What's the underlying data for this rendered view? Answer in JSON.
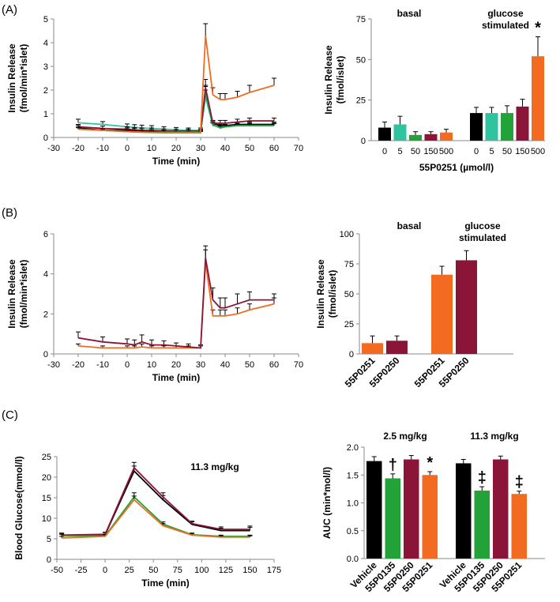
{
  "panels": [
    {
      "label": "(A)"
    },
    {
      "label": "(B)"
    },
    {
      "label": "(C)"
    }
  ],
  "chart_data": [
    {
      "id": "A_left",
      "type": "line",
      "xlabel": "Time (min)",
      "ylabel": "Insulin Release\n(fmol/min*islet)",
      "xlim": [
        -30,
        70
      ],
      "ylim": [
        0,
        5
      ],
      "xticks": [
        -30,
        -20,
        -10,
        0,
        10,
        20,
        30,
        40,
        50,
        60,
        70
      ],
      "yticks": [
        0,
        1,
        2,
        3,
        4,
        5
      ],
      "x": [
        -20,
        -10,
        0,
        3,
        6,
        10,
        15,
        20,
        25,
        30,
        32,
        35,
        38,
        40,
        45,
        50,
        60
      ],
      "series": [
        {
          "name": "0",
          "color": "#000000",
          "values": [
            0.4,
            0.3,
            0.3,
            0.28,
            0.27,
            0.26,
            0.25,
            0.25,
            0.24,
            0.25,
            1.8,
            0.6,
            0.5,
            0.5,
            0.55,
            0.55,
            0.55
          ],
          "err": [
            0.1,
            0.08,
            0.1,
            0.1,
            0.1,
            0.08,
            0.07,
            0.07,
            0.07,
            0.07,
            0.35,
            0.1,
            0.1,
            0.1,
            0.1,
            0.1,
            0.1
          ]
        },
        {
          "name": "5",
          "color": "#2ec4a0",
          "values": [
            0.62,
            0.55,
            0.45,
            0.42,
            0.4,
            0.38,
            0.35,
            0.32,
            0.3,
            0.3,
            1.7,
            0.5,
            0.45,
            0.45,
            0.5,
            0.5,
            0.5
          ],
          "err": [
            0.15,
            0.12,
            0.12,
            0.12,
            0.12,
            0.12,
            0.1,
            0.1,
            0.1,
            0.1,
            0.3,
            0.1,
            0.1,
            0.1,
            0.1,
            0.1,
            0.1
          ]
        },
        {
          "name": "50",
          "color": "#23a23a",
          "values": [
            0.35,
            0.3,
            0.25,
            0.23,
            0.22,
            0.21,
            0.2,
            0.2,
            0.2,
            0.2,
            1.9,
            0.55,
            0.4,
            0.45,
            0.5,
            0.5,
            0.5
          ],
          "err": [
            0.06,
            0.05,
            0.05,
            0.05,
            0.05,
            0.05,
            0.05,
            0.05,
            0.05,
            0.05,
            0.3,
            0.1,
            0.08,
            0.08,
            0.08,
            0.08,
            0.08
          ]
        },
        {
          "name": "150",
          "color": "#8b1538",
          "values": [
            0.45,
            0.38,
            0.35,
            0.32,
            0.3,
            0.3,
            0.28,
            0.27,
            0.27,
            0.27,
            2.1,
            0.6,
            0.6,
            0.6,
            0.65,
            0.7,
            0.7
          ],
          "err": [
            0.1,
            0.1,
            0.1,
            0.1,
            0.1,
            0.1,
            0.08,
            0.08,
            0.08,
            0.08,
            0.35,
            0.12,
            0.12,
            0.12,
            0.12,
            0.12,
            0.12
          ]
        },
        {
          "name": "500",
          "color": "#f26b21",
          "values": [
            0.35,
            0.3,
            0.25,
            0.24,
            0.23,
            0.22,
            0.22,
            0.22,
            0.22,
            0.22,
            4.3,
            1.8,
            1.6,
            1.6,
            1.7,
            1.9,
            2.2
          ],
          "err": [
            0.08,
            0.06,
            0.06,
            0.06,
            0.06,
            0.06,
            0.06,
            0.06,
            0.06,
            0.06,
            0.5,
            0.3,
            0.25,
            0.25,
            0.25,
            0.3,
            0.3
          ]
        }
      ]
    },
    {
      "id": "A_right",
      "type": "bar",
      "ylabel": "Insulin Release\n(fmol/islet)",
      "xlabel": "55P0251 (µmol/l)",
      "ylim": [
        0,
        75
      ],
      "yticks": [
        0,
        25,
        50,
        75
      ],
      "groups": [
        {
          "label": "basal",
          "categories": [
            "0",
            "5",
            "50",
            "150",
            "500"
          ],
          "values": [
            8,
            10,
            3.5,
            4,
            5
          ],
          "err": [
            3.5,
            5,
            2,
            1.5,
            2
          ],
          "colors": [
            "#000000",
            "#2ec4a0",
            "#23a23a",
            "#8b1538",
            "#f26b21"
          ]
        },
        {
          "label": "glucose\nstimulated",
          "categories": [
            "0",
            "5",
            "50",
            "150",
            "500"
          ],
          "values": [
            17,
            17,
            17,
            21,
            52
          ],
          "err": [
            3.5,
            3.5,
            4.5,
            4.5,
            12
          ],
          "colors": [
            "#000000",
            "#2ec4a0",
            "#23a23a",
            "#8b1538",
            "#f26b21"
          ]
        }
      ],
      "annotations": [
        {
          "group": 1,
          "index": 4,
          "text": "*"
        }
      ]
    },
    {
      "id": "B_left",
      "type": "line",
      "xlabel": "Time (min)",
      "ylabel": "Insulin Release\n(fmol/min*islet)",
      "xlim": [
        -30,
        70
      ],
      "ylim": [
        0,
        6
      ],
      "xticks": [
        -30,
        -20,
        -10,
        0,
        10,
        20,
        30,
        40,
        50,
        60,
        70
      ],
      "yticks": [
        0,
        2,
        4,
        6
      ],
      "x": [
        -20,
        -10,
        0,
        3,
        6,
        10,
        15,
        20,
        25,
        30,
        32,
        35,
        38,
        40,
        45,
        50,
        60
      ],
      "series": [
        {
          "name": "55P0251",
          "color": "#f26b21",
          "values": [
            0.4,
            0.3,
            0.3,
            0.3,
            0.35,
            0.3,
            0.3,
            0.3,
            0.3,
            0.3,
            4.6,
            1.9,
            1.9,
            1.9,
            2.0,
            2.2,
            2.5
          ],
          "err": [
            0.1,
            0.1,
            0.1,
            0.1,
            0.15,
            0.1,
            0.1,
            0.1,
            0.1,
            0.1,
            0.6,
            0.3,
            0.3,
            0.3,
            0.3,
            0.3,
            0.3
          ]
        },
        {
          "name": "55P0250",
          "color": "#8b1538",
          "values": [
            0.8,
            0.6,
            0.5,
            0.45,
            0.6,
            0.45,
            0.45,
            0.4,
            0.35,
            0.3,
            4.8,
            2.7,
            2.3,
            2.3,
            2.5,
            2.7,
            2.7
          ],
          "err": [
            0.3,
            0.25,
            0.25,
            0.25,
            0.35,
            0.25,
            0.2,
            0.15,
            0.15,
            0.15,
            0.6,
            0.6,
            0.5,
            0.5,
            0.5,
            0.4,
            0.3
          ]
        }
      ]
    },
    {
      "id": "B_right",
      "type": "bar",
      "ylabel": "Insulin Release\n(fmol/islet)",
      "ylim": [
        0,
        100
      ],
      "yticks": [
        0,
        25,
        50,
        75,
        100
      ],
      "groups": [
        {
          "label": "basal",
          "categories": [
            "55P0251",
            "55P0250"
          ],
          "values": [
            9,
            11
          ],
          "err": [
            6,
            4
          ],
          "colors": [
            "#f26b21",
            "#8b1538"
          ]
        },
        {
          "label": "glucose\nstimulated",
          "categories": [
            "55P0251",
            "55P0250"
          ],
          "values": [
            66,
            78
          ],
          "err": [
            7,
            8
          ],
          "colors": [
            "#f26b21",
            "#8b1538"
          ]
        }
      ],
      "annotations": []
    },
    {
      "id": "C_left",
      "type": "line",
      "title": "11.3 mg/kg",
      "xlabel": "Time (min)",
      "ylabel": "Blood Glucose(mmol/l)",
      "xlim": [
        -50,
        175
      ],
      "ylim": [
        0,
        25
      ],
      "xticks": [
        -50,
        -25,
        0,
        25,
        50,
        75,
        100,
        125,
        150,
        175
      ],
      "yticks": [
        0,
        5,
        10,
        15,
        20,
        25
      ],
      "x": [
        -45,
        0,
        30,
        60,
        90,
        120,
        150
      ],
      "series": [
        {
          "name": "Vehicle",
          "color": "#000000",
          "values": [
            5.8,
            6.0,
            21.5,
            14.5,
            8.5,
            7.0,
            7.0
          ],
          "err": [
            0.5,
            0.5,
            1.2,
            1.0,
            0.6,
            0.6,
            0.8
          ]
        },
        {
          "name": "55P0250",
          "color": "#8b1538",
          "values": [
            5.9,
            6.1,
            22.3,
            15.2,
            8.7,
            7.3,
            7.3
          ],
          "err": [
            0.5,
            0.5,
            1.3,
            1.0,
            0.6,
            0.6,
            0.8
          ]
        },
        {
          "name": "55P0135",
          "color": "#23a23a",
          "values": [
            5.7,
            5.7,
            15.2,
            8.6,
            6.0,
            5.6,
            5.6
          ],
          "err": [
            0.4,
            0.4,
            1.0,
            0.5,
            0.4,
            0.3,
            0.3
          ]
        },
        {
          "name": "55P0251",
          "color": "#f26b21",
          "values": [
            5.2,
            5.6,
            14.5,
            8.2,
            5.9,
            5.4,
            5.4
          ],
          "err": [
            0.4,
            0.4,
            0.9,
            0.5,
            0.4,
            0.3,
            0.3
          ]
        }
      ]
    },
    {
      "id": "C_right",
      "type": "bar",
      "ylabel": "AUC (min*mol/l)",
      "ylim": [
        0,
        2.0
      ],
      "yticks": [
        "0.0",
        "0.5",
        "1.0",
        "1.5",
        "2.0"
      ],
      "groups": [
        {
          "label": "2.5 mg/kg",
          "categories": [
            "Vehicle",
            "55P0135",
            "55P0250",
            "55P0251"
          ],
          "values": [
            1.75,
            1.44,
            1.78,
            1.5
          ],
          "err": [
            0.08,
            0.08,
            0.07,
            0.06
          ],
          "colors": [
            "#000000",
            "#23a23a",
            "#8b1538",
            "#f26b21"
          ]
        },
        {
          "label": "11.3 mg/kg",
          "categories": [
            "Vehicle",
            "55P0135",
            "55P0250",
            "55P0251"
          ],
          "values": [
            1.71,
            1.22,
            1.78,
            1.16
          ],
          "err": [
            0.07,
            0.07,
            0.06,
            0.05
          ],
          "colors": [
            "#000000",
            "#23a23a",
            "#8b1538",
            "#f26b21"
          ]
        }
      ],
      "annotations": [
        {
          "group": 0,
          "index": 1,
          "text": "†"
        },
        {
          "group": 0,
          "index": 3,
          "text": "*"
        },
        {
          "group": 1,
          "index": 1,
          "text": "‡"
        },
        {
          "group": 1,
          "index": 3,
          "text": "‡"
        }
      ]
    }
  ]
}
